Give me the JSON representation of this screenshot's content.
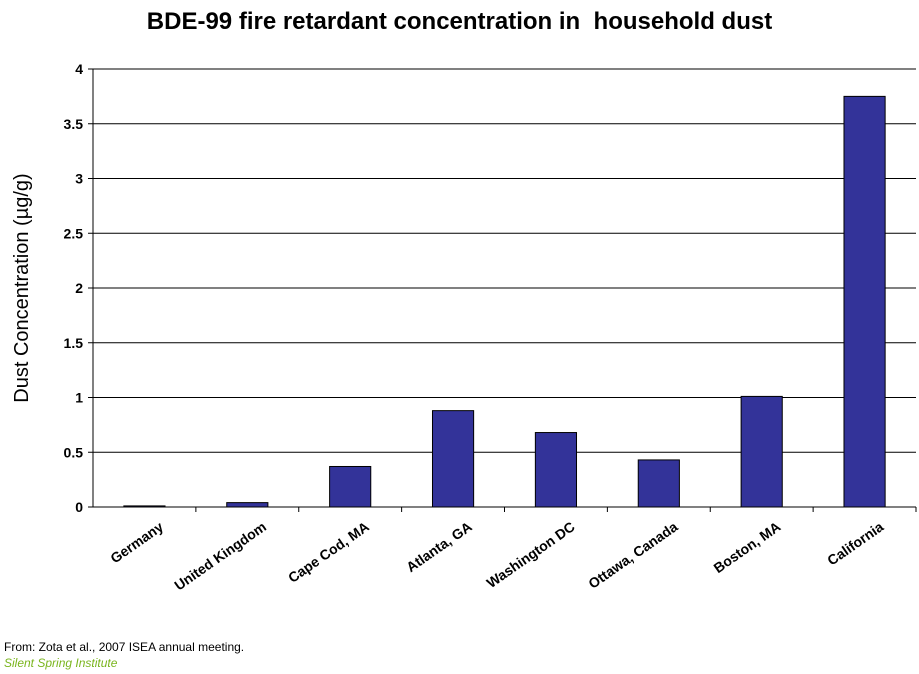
{
  "chart_data": {
    "type": "bar",
    "title": "BDE-99 fire retardant concentration in  household dust",
    "xlabel": "",
    "ylabel": "Dust Concentration (µg/g)",
    "categories": [
      "Germany",
      "United Kingdom",
      "Cape Cod, MA",
      "Atlanta, GA",
      "Washington DC",
      "Ottawa, Canada",
      "Boston, MA",
      "California"
    ],
    "values": [
      0.01,
      0.04,
      0.37,
      0.88,
      0.68,
      0.43,
      1.01,
      3.75
    ],
    "ylim": [
      0,
      4
    ],
    "yticks": [
      "0",
      "0.5",
      "1",
      "1.5",
      "2",
      "2.5",
      "3",
      "3.5",
      "4"
    ],
    "grid": true,
    "legend": "none",
    "bar_color": "#333399"
  },
  "footer": {
    "source": "From: Zota et al., 2007 ISEA annual meeting.",
    "institute": "Silent Spring Institute",
    "institute_color": "#7ab51d"
  }
}
